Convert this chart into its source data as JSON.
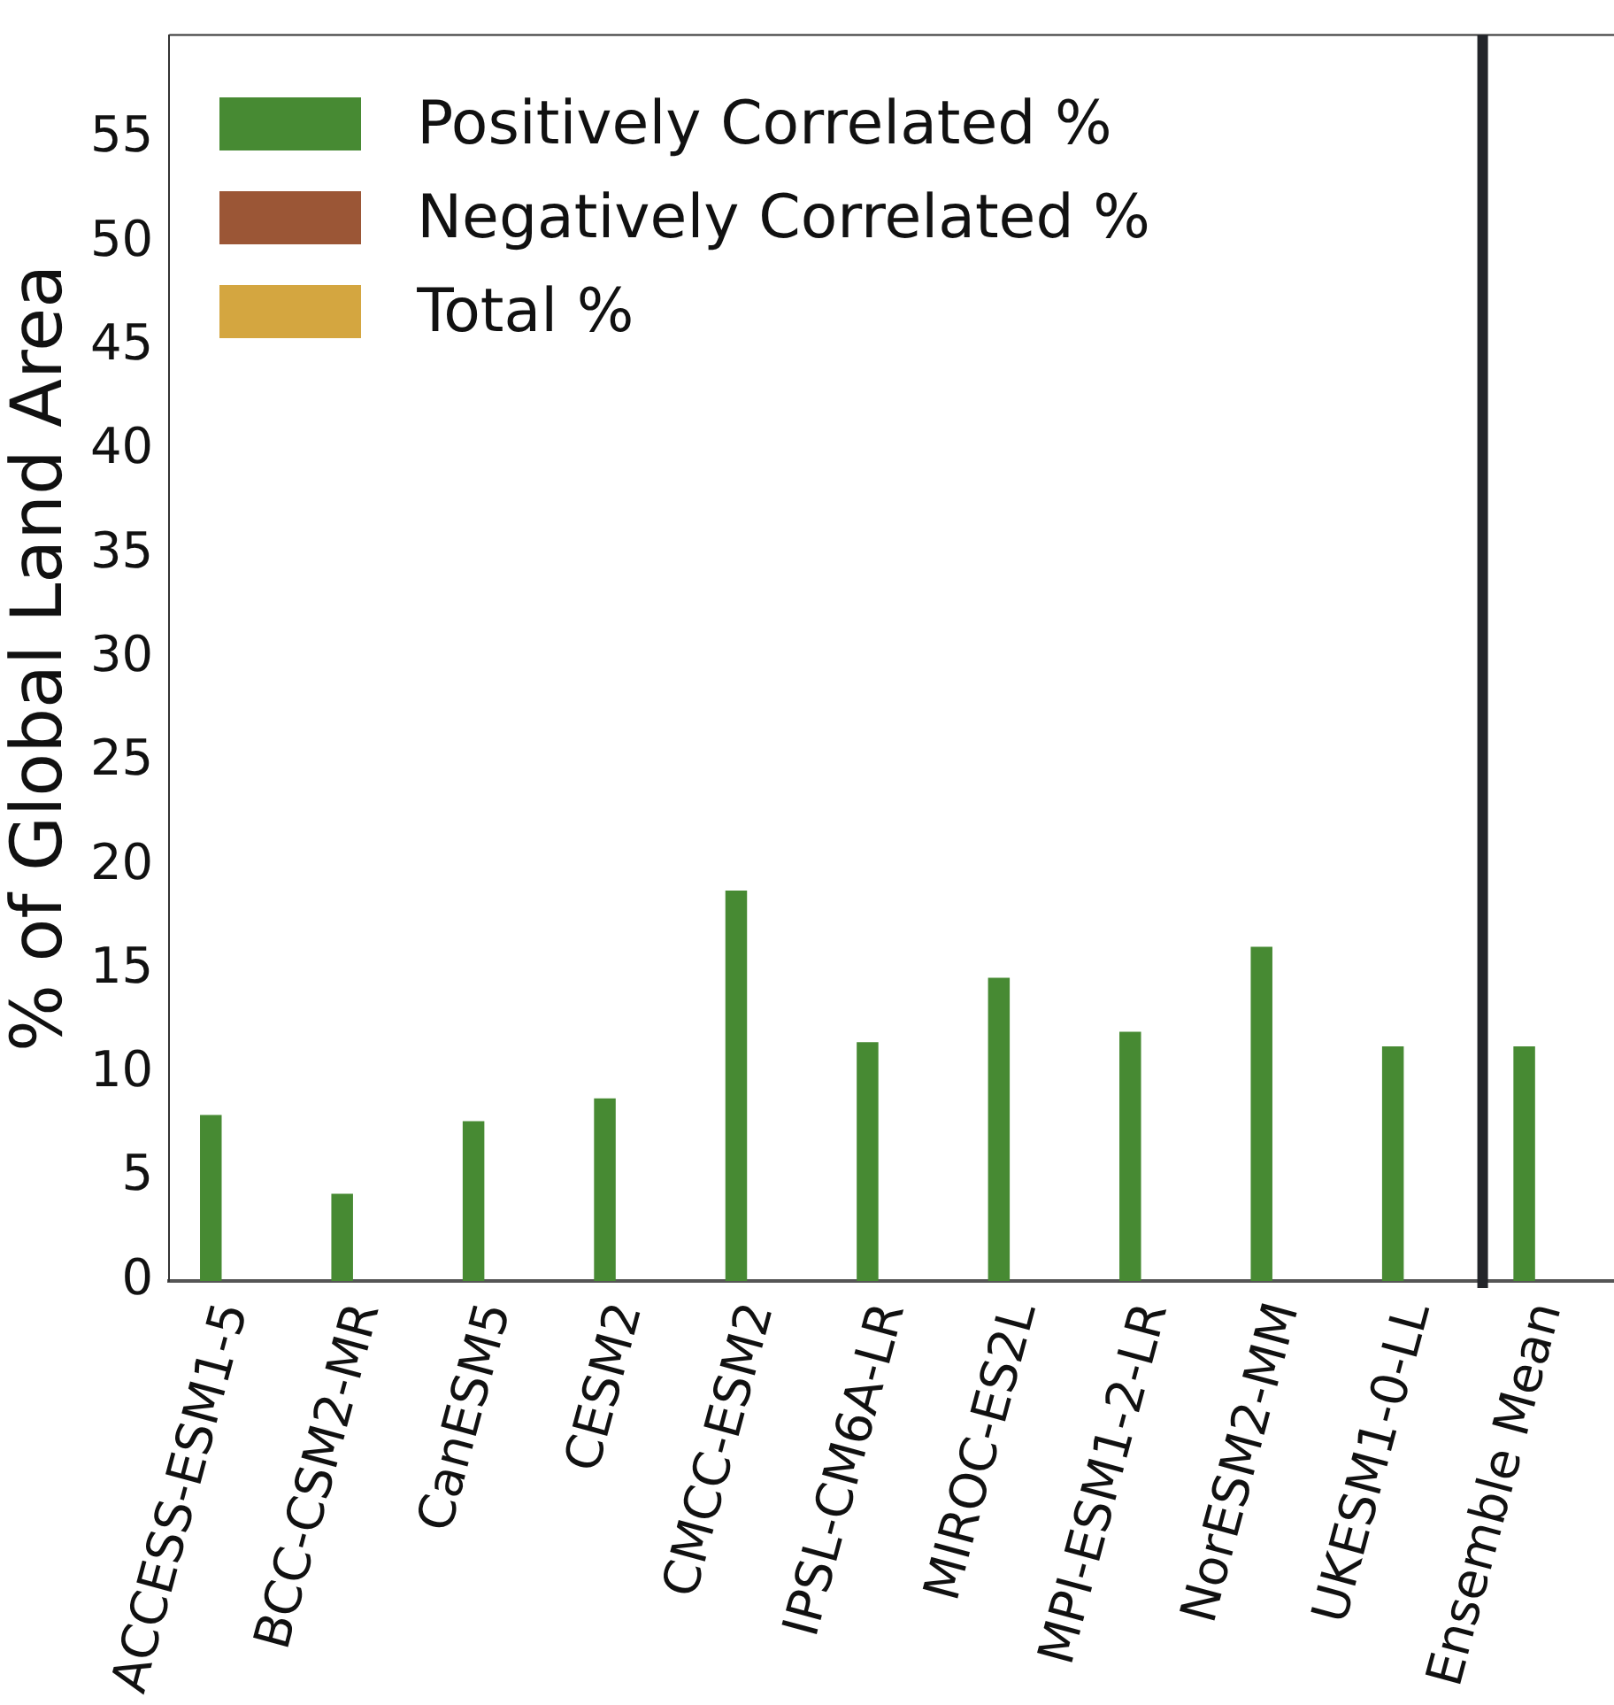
{
  "chart_data": {
    "type": "bar",
    "ylabel": "% of Global Land Area",
    "categories": [
      "ACCESS-ESM1-5",
      "BCC-CSM2-MR",
      "CanESM5",
      "CESM2",
      "CMCC-ESM2",
      "IPSL-CM6A-LR",
      "MIROC-ES2L",
      "MPI-ESM1-2-LR",
      "NorESM2-MM",
      "UKESM1-0-LL",
      "Ensemble Mean"
    ],
    "series": [
      {
        "name": "Positively Correlated %",
        "color": "#478a33",
        "values": [
          8.0,
          4.2,
          7.7,
          8.8,
          18.8,
          11.5,
          14.6,
          12.0,
          16.1,
          11.3,
          11.3
        ]
      },
      {
        "name": "Negatively Correlated %",
        "color": "#9b5636",
        "values": [
          0,
          0,
          0,
          0,
          0,
          0,
          0,
          0,
          0,
          0,
          0
        ]
      },
      {
        "name": "Total %",
        "color": "#d4a640",
        "values": [
          null,
          null,
          null,
          null,
          null,
          null,
          null,
          null,
          null,
          null,
          null
        ]
      }
    ],
    "ylim": [
      0,
      60
    ],
    "yticks": [
      0,
      5,
      10,
      15,
      20,
      25,
      30,
      35,
      40,
      45,
      50,
      55
    ],
    "grid": false,
    "legend": "top left"
  }
}
